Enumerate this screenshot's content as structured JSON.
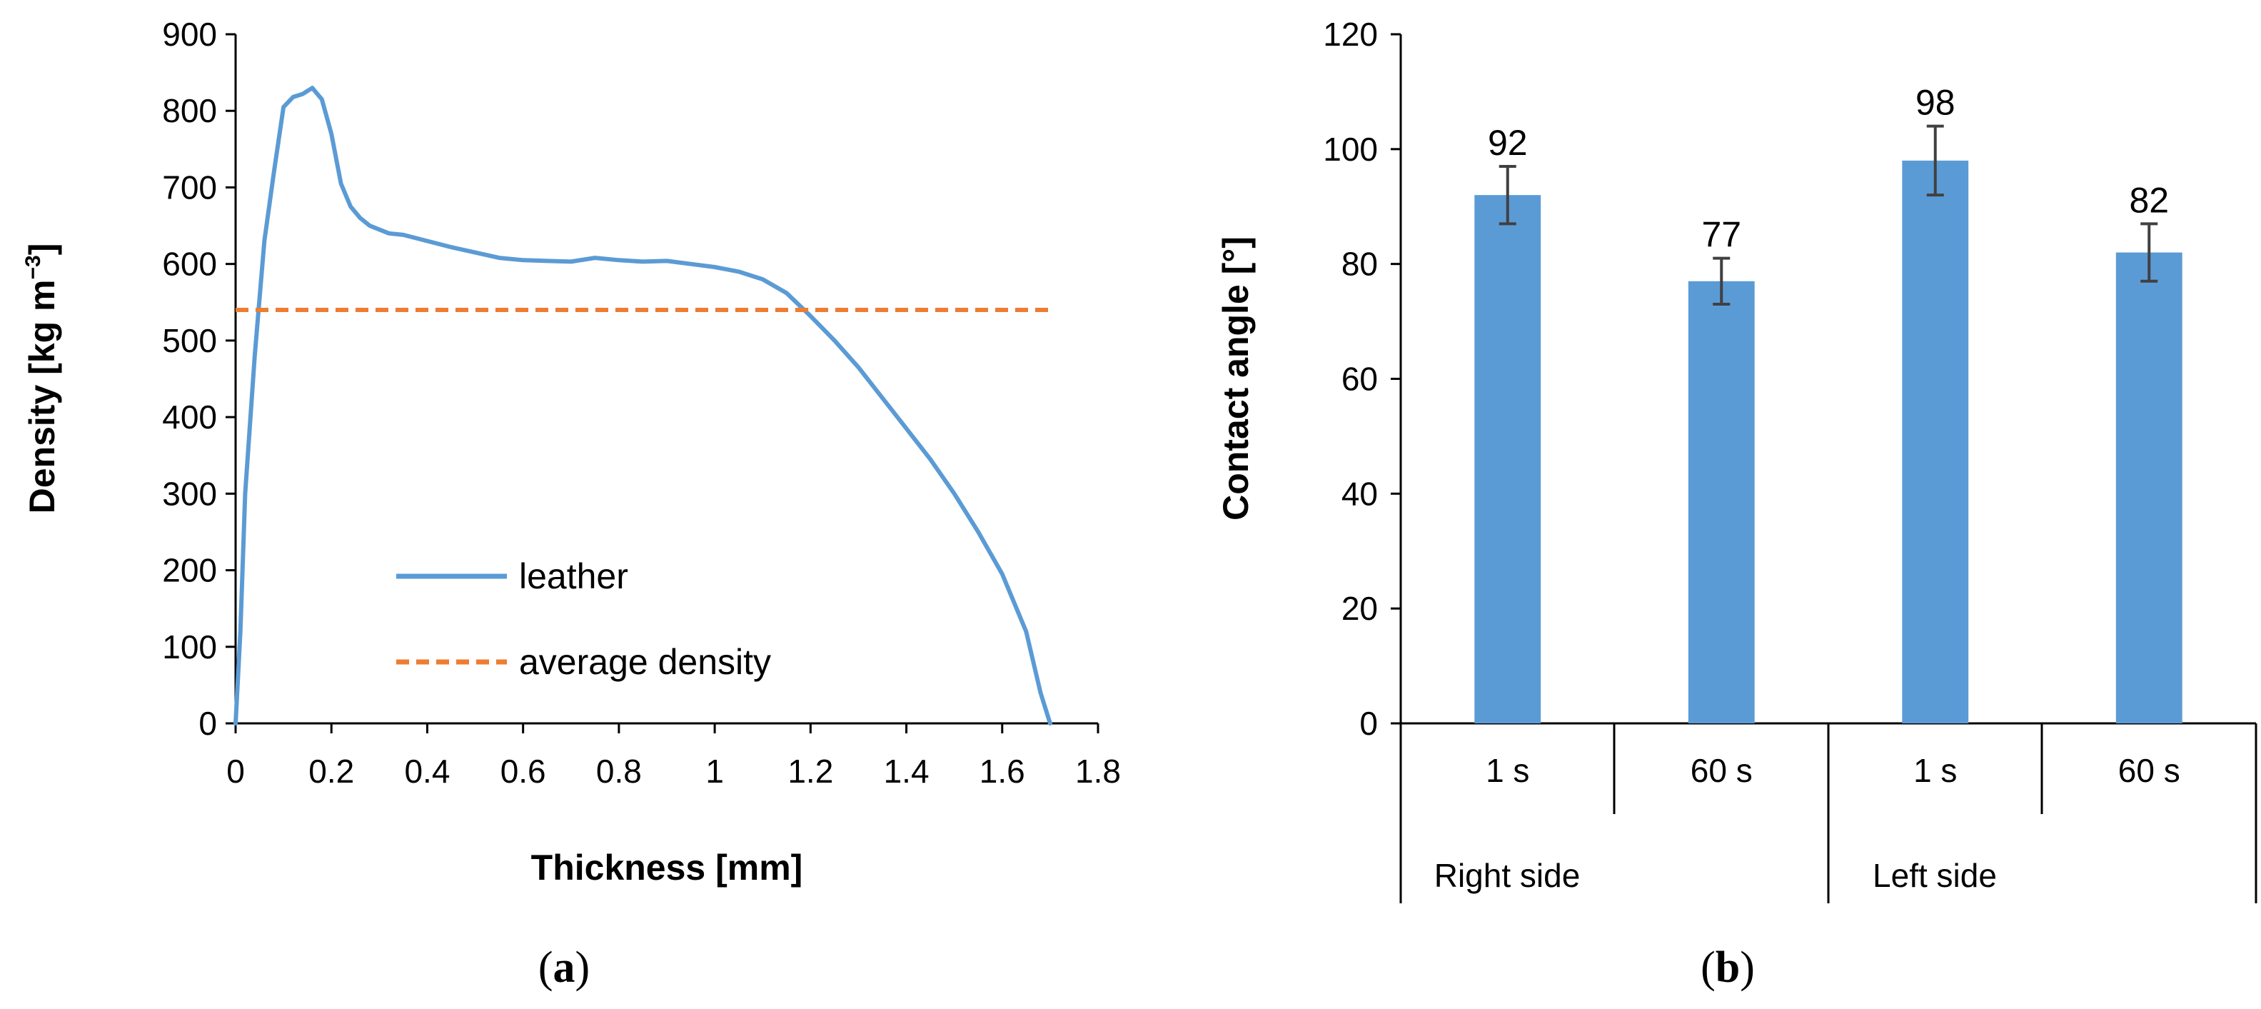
{
  "chart_data": [
    {
      "panel": "a",
      "type": "line",
      "xlabel": "Thickness [mm]",
      "ylabel_main": "Density [kg m",
      "ylabel_sup": "−3",
      "ylabel_close": "]",
      "xlim": [
        0,
        1.8
      ],
      "ylim": [
        0,
        900
      ],
      "xticks": [
        0,
        0.2,
        0.4,
        0.6,
        0.8,
        1,
        1.2,
        1.4,
        1.6,
        1.8
      ],
      "xtick_labels": [
        "0",
        "0.2",
        "0.4",
        "0.6",
        "0.8",
        "1",
        "1.2",
        "1.4",
        "1.6",
        "1.8"
      ],
      "yticks": [
        0,
        100,
        200,
        300,
        400,
        500,
        600,
        700,
        800,
        900
      ],
      "ytick_labels": [
        "0",
        "100",
        "200",
        "300",
        "400",
        "500",
        "600",
        "700",
        "800",
        "900"
      ],
      "legend_position": "lower-left",
      "series": [
        {
          "name": "leather",
          "style": "solid",
          "color": "#5b9bd5",
          "x": [
            0,
            0.01,
            0.02,
            0.04,
            0.06,
            0.08,
            0.1,
            0.12,
            0.14,
            0.16,
            0.18,
            0.2,
            0.22,
            0.24,
            0.26,
            0.28,
            0.3,
            0.32,
            0.35,
            0.4,
            0.45,
            0.5,
            0.55,
            0.6,
            0.65,
            0.7,
            0.75,
            0.8,
            0.85,
            0.9,
            0.95,
            1.0,
            1.05,
            1.1,
            1.15,
            1.2,
            1.25,
            1.3,
            1.35,
            1.4,
            1.45,
            1.5,
            1.55,
            1.6,
            1.65,
            1.68,
            1.7
          ],
          "y": [
            0,
            120,
            300,
            480,
            630,
            720,
            805,
            818,
            822,
            830,
            815,
            770,
            705,
            675,
            660,
            650,
            645,
            640,
            638,
            630,
            622,
            615,
            608,
            605,
            604,
            603,
            608,
            605,
            603,
            604,
            600,
            596,
            590,
            580,
            562,
            532,
            500,
            465,
            425,
            385,
            345,
            300,
            250,
            195,
            120,
            40,
            0
          ]
        },
        {
          "name": "average density",
          "style": "dashed",
          "color": "#ed7d31",
          "x": [
            0,
            1.7
          ],
          "y": [
            540,
            540
          ]
        }
      ],
      "caption": "(a)",
      "caption_open": "(",
      "caption_letter": "a",
      "caption_close": ")"
    },
    {
      "panel": "b",
      "type": "bar",
      "ylabel": "Contact angle [°]",
      "ylim": [
        0,
        120
      ],
      "yticks": [
        0,
        20,
        40,
        60,
        80,
        100,
        120
      ],
      "ytick_labels": [
        "0",
        "20",
        "40",
        "60",
        "80",
        "100",
        "120"
      ],
      "bar_color": "#5b9bd5",
      "categories": [
        "1 s",
        "60 s",
        "1 s",
        "60 s"
      ],
      "groups": [
        "Right side",
        "Left side"
      ],
      "values": [
        92,
        77,
        98,
        82
      ],
      "value_labels": [
        "92",
        "77",
        "98",
        "82"
      ],
      "error_low": [
        87,
        73,
        92,
        77
      ],
      "error_high": [
        97,
        81,
        104,
        87
      ],
      "caption": "(b)",
      "caption_open": "(",
      "caption_letter": "b",
      "caption_close": ")"
    }
  ]
}
